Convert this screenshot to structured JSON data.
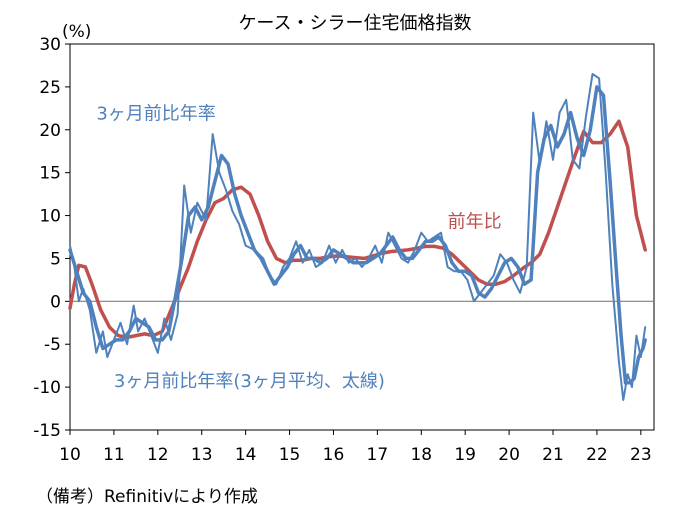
{
  "chart_data": {
    "type": "line",
    "title": "ケース・シラー住宅価格指数",
    "unit_label": "(%)",
    "ylim": [
      -15,
      30
    ],
    "yticks": [
      30,
      25,
      20,
      15,
      10,
      5,
      0,
      -5,
      -10,
      -15
    ],
    "ytick_labels": [
      "30",
      "25",
      "20",
      "15",
      "10",
      "5",
      "0",
      "-5",
      "-10",
      "-15"
    ],
    "xlim": [
      2010,
      2023.3
    ],
    "xticks": [
      2010,
      2011,
      2012,
      2013,
      2014,
      2015,
      2016,
      2017,
      2018,
      2019,
      2020,
      2021,
      2022,
      2023
    ],
    "xtick_labels": [
      "10",
      "11",
      "12",
      "13",
      "14",
      "15",
      "16",
      "17",
      "18",
      "19",
      "20",
      "21",
      "22",
      "23"
    ],
    "grid": false,
    "colors": {
      "blue": "#4f81bd",
      "red": "#c0504d",
      "zero_line": "#808080"
    },
    "series": [
      {
        "name": "前年比",
        "color": "#c0504d",
        "x": [
          2010.0,
          2010.1,
          2010.2,
          2010.35,
          2010.5,
          2010.7,
          2010.9,
          2011.1,
          2011.3,
          2011.5,
          2011.7,
          2011.9,
          2012.1,
          2012.3,
          2012.5,
          2012.7,
          2012.9,
          2013.1,
          2013.3,
          2013.5,
          2013.7,
          2013.9,
          2014.1,
          2014.3,
          2014.5,
          2014.7,
          2014.9,
          2015.1,
          2015.3,
          2015.5,
          2015.7,
          2015.9,
          2016.1,
          2016.3,
          2016.5,
          2016.7,
          2016.9,
          2017.1,
          2017.3,
          2017.5,
          2017.7,
          2017.9,
          2018.1,
          2018.3,
          2018.5,
          2018.7,
          2018.9,
          2019.1,
          2019.3,
          2019.5,
          2019.7,
          2019.9,
          2020.1,
          2020.3,
          2020.5,
          2020.7,
          2020.9,
          2021.1,
          2021.3,
          2021.5,
          2021.7,
          2021.9,
          2022.1,
          2022.3,
          2022.5,
          2022.7,
          2022.9,
          2023.1
        ],
        "values": [
          -0.8,
          2.0,
          4.2,
          4.0,
          2.0,
          -1.0,
          -3.0,
          -4.0,
          -4.2,
          -4.0,
          -3.8,
          -4.0,
          -3.5,
          -1.0,
          1.5,
          4.0,
          7.0,
          9.5,
          11.5,
          12.0,
          13.0,
          13.3,
          12.5,
          10.0,
          7.0,
          5.0,
          4.5,
          4.8,
          4.8,
          5.0,
          5.0,
          5.2,
          5.3,
          5.2,
          5.1,
          5.0,
          5.3,
          5.6,
          5.8,
          5.9,
          6.0,
          6.2,
          6.4,
          6.4,
          6.2,
          5.5,
          4.5,
          3.5,
          2.5,
          2.0,
          2.0,
          2.3,
          3.0,
          3.8,
          4.5,
          5.5,
          8.0,
          11.0,
          14.0,
          17.0,
          19.8,
          18.5,
          18.5,
          19.5,
          21.0,
          18.0,
          10.0,
          6.0
        ]
      },
      {
        "name": "3ヶ月前比年率",
        "color": "#4f81bd",
        "x": [
          2010.0,
          2010.1,
          2010.2,
          2010.3,
          2010.45,
          2010.6,
          2010.75,
          2010.85,
          2011.0,
          2011.15,
          2011.3,
          2011.45,
          2011.55,
          2011.7,
          2011.85,
          2012.0,
          2012.15,
          2012.3,
          2012.45,
          2012.6,
          2012.75,
          2012.9,
          2013.1,
          2013.25,
          2013.4,
          2013.55,
          2013.7,
          2013.85,
          2014.0,
          2014.2,
          2014.4,
          2014.55,
          2014.7,
          2014.85,
          2015.0,
          2015.15,
          2015.3,
          2015.45,
          2015.6,
          2015.75,
          2015.9,
          2016.05,
          2016.2,
          2016.35,
          2016.5,
          2016.65,
          2016.8,
          2016.95,
          2017.1,
          2017.25,
          2017.4,
          2017.55,
          2017.7,
          2017.85,
          2018.0,
          2018.15,
          2018.3,
          2018.45,
          2018.6,
          2018.75,
          2018.9,
          2019.05,
          2019.2,
          2019.35,
          2019.5,
          2019.65,
          2019.8,
          2019.95,
          2020.1,
          2020.25,
          2020.4,
          2020.55,
          2020.7,
          2020.85,
          2021.0,
          2021.15,
          2021.3,
          2021.45,
          2021.6,
          2021.75,
          2021.9,
          2022.05,
          2022.2,
          2022.35,
          2022.5,
          2022.6,
          2022.7,
          2022.8,
          2022.9,
          2023.0,
          2023.1
        ],
        "values": [
          6.5,
          4.0,
          0.0,
          1.5,
          -1.0,
          -6.0,
          -3.5,
          -6.5,
          -4.5,
          -2.5,
          -5.0,
          -0.5,
          -3.5,
          -2.0,
          -4.0,
          -6.0,
          -2.0,
          -4.5,
          -1.5,
          13.5,
          8.0,
          11.5,
          9.5,
          19.5,
          15.0,
          13.0,
          10.5,
          9.0,
          6.5,
          6.0,
          5.0,
          3.0,
          2.0,
          4.0,
          5.0,
          7.0,
          4.5,
          6.0,
          4.0,
          4.5,
          6.5,
          4.5,
          6.0,
          4.5,
          5.0,
          4.0,
          5.0,
          6.5,
          4.5,
          8.0,
          6.5,
          5.0,
          4.5,
          6.0,
          8.0,
          7.0,
          7.5,
          8.0,
          4.0,
          3.5,
          3.5,
          2.5,
          0.0,
          1.0,
          2.0,
          3.0,
          5.5,
          4.5,
          2.5,
          1.0,
          4.0,
          22.0,
          16.0,
          21.0,
          16.5,
          22.0,
          23.5,
          16.5,
          15.5,
          21.5,
          26.5,
          26.0,
          15.0,
          2.0,
          -7.0,
          -11.5,
          -8.5,
          -10.0,
          -4.0,
          -6.5,
          -3.0
        ]
      },
      {
        "name": "3ヶ月前比年率(3ヶ月平均、太線)",
        "color": "#4f81bd",
        "x": [
          2010.0,
          2010.15,
          2010.3,
          2010.45,
          2010.6,
          2010.75,
          2010.9,
          2011.05,
          2011.2,
          2011.35,
          2011.5,
          2011.65,
          2011.8,
          2011.95,
          2012.1,
          2012.25,
          2012.4,
          2012.55,
          2012.7,
          2012.85,
          2013.0,
          2013.15,
          2013.3,
          2013.45,
          2013.6,
          2013.75,
          2013.9,
          2014.05,
          2014.2,
          2014.35,
          2014.5,
          2014.65,
          2014.8,
          2014.95,
          2015.1,
          2015.25,
          2015.4,
          2015.55,
          2015.7,
          2015.85,
          2016.0,
          2016.15,
          2016.3,
          2016.45,
          2016.6,
          2016.75,
          2016.9,
          2017.05,
          2017.2,
          2017.35,
          2017.5,
          2017.65,
          2017.8,
          2017.95,
          2018.1,
          2018.25,
          2018.4,
          2018.55,
          2018.7,
          2018.85,
          2019.0,
          2019.15,
          2019.3,
          2019.45,
          2019.6,
          2019.75,
          2019.9,
          2020.05,
          2020.2,
          2020.35,
          2020.5,
          2020.65,
          2020.8,
          2020.95,
          2021.1,
          2021.25,
          2021.4,
          2021.55,
          2021.7,
          2021.85,
          2022.0,
          2022.15,
          2022.3,
          2022.45,
          2022.55,
          2022.65,
          2022.75,
          2022.85,
          2022.95,
          2023.05,
          2023.1
        ],
        "values": [
          6.0,
          3.5,
          1.0,
          0.0,
          -3.0,
          -5.5,
          -5.0,
          -4.5,
          -4.5,
          -3.5,
          -2.0,
          -2.5,
          -3.0,
          -4.5,
          -4.5,
          -3.5,
          0.5,
          5.0,
          10.0,
          11.0,
          9.5,
          11.0,
          14.0,
          17.0,
          16.0,
          12.5,
          10.0,
          8.0,
          6.0,
          5.0,
          3.5,
          2.0,
          3.0,
          4.0,
          5.5,
          6.5,
          5.0,
          5.0,
          4.5,
          5.0,
          6.0,
          5.5,
          5.0,
          4.5,
          4.5,
          4.5,
          5.0,
          5.5,
          6.5,
          7.5,
          6.0,
          5.0,
          5.0,
          6.0,
          7.0,
          7.0,
          7.5,
          6.5,
          4.5,
          3.5,
          3.5,
          3.0,
          1.0,
          0.5,
          1.5,
          3.0,
          4.5,
          5.0,
          4.0,
          2.0,
          2.5,
          15.0,
          19.0,
          20.5,
          18.0,
          19.5,
          22.0,
          19.0,
          17.0,
          20.0,
          25.0,
          24.0,
          14.0,
          3.0,
          -4.0,
          -9.5,
          -9.5,
          -9.0,
          -6.5,
          -5.5,
          -4.5
        ]
      }
    ],
    "annotations": [
      {
        "text": "3ヶ月前比年率",
        "x": 2010.6,
        "y": 21.2,
        "color": "#4f81bd"
      },
      {
        "text": "前年比",
        "x": 2018.6,
        "y": 8.6,
        "color": "#c0504d"
      },
      {
        "text": "3ヶ月前比年率(3ヶ月平均、太線)",
        "x": 2011.0,
        "y": -10.0,
        "color": "#4f81bd"
      }
    ]
  },
  "source_note": "（備考）Refinitivにより作成"
}
